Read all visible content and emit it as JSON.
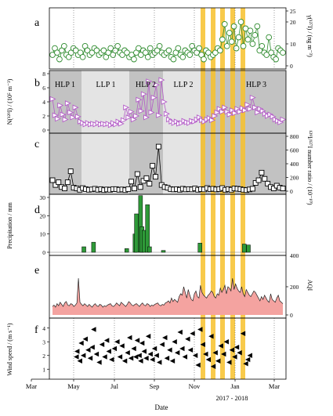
{
  "figure": {
    "xlabel": "Date",
    "xsub": "2017 - 2018",
    "x_tick_labels": [
      "Mar",
      "May",
      "Jul",
      "Sep",
      "Nov",
      "Jan",
      "Mar"
    ],
    "highlight_color": "#f7c12b"
  },
  "chart_data": [
    {
      "panel": "a",
      "type": "scatter",
      "letter": "a",
      "ylabel_right": "γ(¹²⁷I) / (ng m⁻³)",
      "ylim": [
        0,
        25
      ],
      "y_ticks": [
        0,
        10,
        20,
        25
      ],
      "color": "#2e8b2e",
      "values": [
        5,
        8,
        6,
        3,
        7,
        9,
        5,
        4,
        6,
        8,
        7,
        5,
        6,
        4,
        9,
        7,
        5,
        6,
        8,
        7,
        5,
        6,
        7,
        4,
        6,
        8,
        5,
        7,
        9,
        6,
        5,
        7,
        6,
        4,
        5,
        3,
        6,
        8,
        5,
        7,
        6,
        4,
        8,
        5,
        6,
        7,
        9,
        6,
        5,
        6,
        7,
        4,
        3,
        6,
        8,
        5,
        4,
        7,
        6,
        5,
        9,
        7,
        6,
        8,
        5,
        3,
        7,
        6,
        4,
        5,
        6,
        8,
        7,
        12,
        19,
        9,
        15,
        11,
        18,
        8,
        13,
        20,
        9,
        17,
        12,
        16,
        10,
        14,
        18,
        7,
        9,
        6,
        5,
        13,
        6,
        4,
        3,
        8,
        7,
        6
      ]
    },
    {
      "panel": "b",
      "type": "line",
      "letter": "b",
      "ylabel_left": "N(¹²⁹I) / (10⁵ m⁻³)",
      "ylim": [
        0,
        8
      ],
      "y_ticks": [
        0,
        2,
        4,
        6,
        8
      ],
      "color": "#b45cc8",
      "period_labels": [
        "HLP 1",
        "LLP 1",
        "HLP 2",
        "LLP 2",
        "HLP 3"
      ],
      "values": [
        4.4,
        2.1,
        1.6,
        3.5,
        2.2,
        1.5,
        3.8,
        2.5,
        1.8,
        3.2,
        1.9,
        1.2,
        1.0,
        0.8,
        1.0,
        0.8,
        0.9,
        0.8,
        1.0,
        0.8,
        0.9,
        0.8,
        0.9,
        0.7,
        1.0,
        0.8,
        1.2,
        0.9,
        1.4,
        3.2,
        1.8,
        2.6,
        1.5,
        2.0,
        4.3,
        2.7,
        5.1,
        1.8,
        6.9,
        2.5,
        4.6,
        6.4,
        2.1,
        7.1,
        4.0,
        2.3,
        1.5,
        1.2,
        1.0,
        1.2,
        0.9,
        1.0,
        1.3,
        1.1,
        1.0,
        1.3,
        1.2,
        1.5,
        1.8,
        1.4,
        1.2,
        1.5,
        1.7,
        1.4,
        2.0,
        2.5,
        3.0,
        2.6,
        3.2,
        2.6,
        2.2,
        2.8,
        2.4,
        3.0,
        2.6,
        3.1,
        2.8,
        3.6,
        3.0,
        4.6,
        3.2,
        2.5,
        3.0,
        2.7,
        2.3,
        2.0,
        2.2,
        1.9,
        1.5,
        1.3,
        1.1,
        1.5
      ]
    },
    {
      "panel": "c",
      "type": "line",
      "letter": "c",
      "ylabel_right": "¹²⁹I/¹²⁷I number ratio / (10⁻¹⁰)",
      "ylim": [
        0,
        800
      ],
      "y_ticks": [
        0,
        200,
        400,
        600,
        800
      ],
      "color": "#000000",
      "values": [
        160,
        90,
        130,
        60,
        40,
        130,
        290,
        50,
        40,
        20,
        45,
        30,
        20,
        25,
        35,
        20,
        30,
        15,
        25,
        20,
        30,
        30,
        20,
        25,
        15,
        30,
        140,
        40,
        250,
        60,
        150,
        190,
        110,
        370,
        210,
        650,
        90,
        60,
        50,
        30,
        25,
        30,
        20,
        35,
        25,
        30,
        25,
        40,
        20,
        30,
        25,
        45,
        30,
        35,
        25,
        30,
        45,
        20,
        30,
        20,
        40,
        35,
        30,
        20,
        15,
        25,
        35,
        120,
        160,
        270,
        180,
        110,
        60,
        40,
        80,
        50,
        40
      ]
    },
    {
      "panel": "d",
      "type": "bar",
      "letter": "d",
      "ylabel_left": "Precipitation / mm",
      "ylim": [
        0,
        30
      ],
      "y_ticks": [
        0,
        10,
        20,
        30
      ],
      "color": "#2e9a38",
      "bars": [
        {
          "x": 76,
          "value": 3
        },
        {
          "x": 90,
          "value": 5.5
        },
        {
          "x": 138,
          "value": 2
        },
        {
          "x": 150,
          "value": 10
        },
        {
          "x": 152,
          "value": 21
        },
        {
          "x": 158,
          "value": 31
        },
        {
          "x": 160,
          "value": 14
        },
        {
          "x": 163,
          "value": 12
        },
        {
          "x": 168,
          "value": 26
        },
        {
          "x": 171,
          "value": 3
        },
        {
          "x": 191,
          "value": 1
        },
        {
          "x": 244,
          "value": 5
        },
        {
          "x": 308,
          "value": 4.5
        },
        {
          "x": 314,
          "value": 4
        }
      ]
    },
    {
      "panel": "e",
      "type": "area",
      "letter": "e",
      "ylabel_right": "AQI",
      "ylim": [
        0,
        400
      ],
      "y_ticks": [
        0,
        200,
        400
      ],
      "color": "#f4a3a0",
      "values": [
        60,
        70,
        55,
        80,
        65,
        90,
        75,
        60,
        85,
        95,
        70,
        65,
        80,
        75,
        60,
        70,
        85,
        260,
        90,
        75,
        65,
        80,
        70,
        60,
        75,
        65,
        55,
        70,
        80,
        65,
        60,
        75,
        70,
        55,
        65,
        60,
        70,
        75,
        80,
        65,
        60,
        70,
        85,
        75,
        65,
        90,
        80,
        70,
        60,
        75,
        95,
        85,
        70,
        65,
        75,
        80,
        70,
        60,
        75,
        85,
        70,
        65,
        80,
        75,
        60,
        70,
        65,
        75,
        80,
        85,
        70,
        65,
        75,
        70,
        85,
        90,
        100,
        85,
        120,
        95,
        110,
        100,
        90,
        130,
        150,
        140,
        200,
        160,
        120,
        180,
        140,
        110,
        100,
        150,
        170,
        130,
        120,
        210,
        160,
        140,
        130,
        120,
        140,
        150,
        170,
        160,
        130,
        120,
        150,
        140,
        190,
        160,
        180,
        210,
        150,
        200,
        190,
        170,
        260,
        180,
        220,
        190,
        170,
        160,
        200,
        150,
        130,
        180,
        160,
        140,
        130,
        150,
        170,
        160,
        140,
        120,
        100,
        130,
        110,
        140,
        120,
        100,
        90,
        150,
        110,
        100,
        90,
        120,
        140,
        100,
        90,
        80
      ]
    },
    {
      "panel": "f",
      "type": "scatter",
      "letter": "f",
      "ylabel_left": "Wind speed / (m s⁻¹)",
      "ylim": [
        0.5,
        4.5
      ],
      "y_ticks": [
        1,
        2,
        3,
        4
      ],
      "color": "#000000",
      "points": [
        [
          65,
          1.9
        ],
        [
          66,
          2.3
        ],
        [
          70,
          1.6
        ],
        [
          72,
          2.9
        ],
        [
          75,
          2.0
        ],
        [
          78,
          3.2
        ],
        [
          82,
          2.4
        ],
        [
          85,
          1.8
        ],
        [
          88,
          2.6
        ],
        [
          90,
          3.9
        ],
        [
          94,
          2.1
        ],
        [
          98,
          1.5
        ],
        [
          102,
          2.8
        ],
        [
          106,
          1.9
        ],
        [
          109,
          3.1
        ],
        [
          112,
          2.3
        ],
        [
          116,
          1.7
        ],
        [
          120,
          2.5
        ],
        [
          124,
          3.0
        ],
        [
          128,
          1.9
        ],
        [
          131,
          2.7
        ],
        [
          135,
          1.6
        ],
        [
          139,
          2.2
        ],
        [
          142,
          3.3
        ],
        [
          144,
          1.8
        ],
        [
          148,
          2.5
        ],
        [
          151,
          1.9
        ],
        [
          153,
          3.1
        ],
        [
          156,
          2.0
        ],
        [
          158,
          1.6
        ],
        [
          160,
          2.9
        ],
        [
          163,
          2.3
        ],
        [
          166,
          1.8
        ],
        [
          169,
          3.4
        ],
        [
          172,
          2.1
        ],
        [
          175,
          1.7
        ],
        [
          178,
          2.5
        ],
        [
          181,
          2.0
        ],
        [
          185,
          1.5
        ],
        [
          189,
          2.8
        ],
        [
          193,
          3.3
        ],
        [
          196,
          1.8
        ],
        [
          200,
          2.4
        ],
        [
          204,
          1.6
        ],
        [
          207,
          3.0
        ],
        [
          211,
          2.2
        ],
        [
          215,
          3.7
        ],
        [
          218,
          2.5
        ],
        [
          222,
          1.9
        ],
        [
          226,
          3.2
        ],
        [
          230,
          2.4
        ],
        [
          233,
          3.6
        ],
        [
          237,
          2.0
        ],
        [
          241,
          1.3
        ],
        [
          244,
          3.9
        ],
        [
          248,
          2.8
        ],
        [
          252,
          2.1
        ],
        [
          256,
          1.7
        ],
        [
          260,
          3.4
        ],
        [
          263,
          1.2
        ],
        [
          266,
          2.2
        ],
        [
          270,
          1.6
        ],
        [
          274,
          2.7
        ],
        [
          278,
          2.1
        ],
        [
          282,
          3.0
        ],
        [
          286,
          1.5
        ],
        [
          290,
          2.4
        ],
        [
          294,
          1.9
        ],
        [
          297,
          2.6
        ],
        [
          301,
          2.2
        ],
        [
          306,
          3.6
        ],
        [
          310,
          1.4
        ],
        [
          313,
          1.7
        ],
        [
          316,
          2.0
        ]
      ]
    }
  ]
}
